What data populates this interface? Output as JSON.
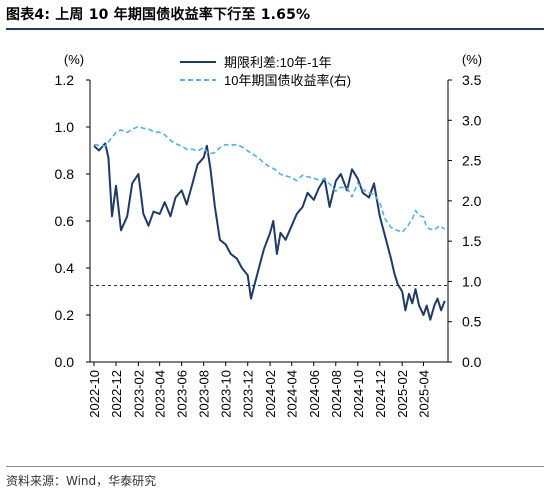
{
  "header": {
    "title": "图表4:  上周 10 年期国债收益率下行至 1.65%"
  },
  "footer": {
    "source": "资料来源：Wind，华泰研究"
  },
  "colors": {
    "spread": "#1f3a66",
    "yield10y": "#4fb3e3",
    "reference": "#1f3a66",
    "accent": "#1f3a66"
  },
  "chart_data": {
    "type": "line",
    "title": "",
    "xlabel": "",
    "y_left_label": "(%)",
    "y_right_label": "(%)",
    "ylim_left": [
      0.0,
      1.2
    ],
    "ylim_right": [
      0.0,
      3.5
    ],
    "yticks_left": [
      "0.0",
      "0.2",
      "0.4",
      "0.6",
      "0.8",
      "1.0",
      "1.2"
    ],
    "yticks_right": [
      "0.0",
      "0.5",
      "1.0",
      "1.5",
      "2.0",
      "2.5",
      "3.0",
      "3.5"
    ],
    "xticks": [
      "2022-10",
      "2022-12",
      "2023-02",
      "2023-04",
      "2023-06",
      "2023-08",
      "2023-10",
      "2023-12",
      "2024-02",
      "2024-04",
      "2024-06",
      "2024-08",
      "2024-10",
      "2024-12",
      "2025-02",
      "2025-04"
    ],
    "reference_line": {
      "axis": "right",
      "value": 0.95
    },
    "legend_position": "top-right",
    "grid": false,
    "series": [
      {
        "name": "期限利差:10年-1年",
        "axis": "left",
        "style": "solid",
        "points": [
          [
            "2022-10-01",
            0.92
          ],
          [
            "2022-10-15",
            0.9
          ],
          [
            "2022-11-01",
            0.93
          ],
          [
            "2022-11-10",
            0.87
          ],
          [
            "2022-11-20",
            0.62
          ],
          [
            "2022-12-01",
            0.75
          ],
          [
            "2022-12-15",
            0.56
          ],
          [
            "2023-01-01",
            0.62
          ],
          [
            "2023-01-15",
            0.76
          ],
          [
            "2023-02-01",
            0.8
          ],
          [
            "2023-02-15",
            0.63
          ],
          [
            "2023-03-01",
            0.58
          ],
          [
            "2023-03-15",
            0.64
          ],
          [
            "2023-04-01",
            0.63
          ],
          [
            "2023-04-15",
            0.68
          ],
          [
            "2023-05-01",
            0.62
          ],
          [
            "2023-05-15",
            0.7
          ],
          [
            "2023-06-01",
            0.73
          ],
          [
            "2023-06-15",
            0.67
          ],
          [
            "2023-07-01",
            0.76
          ],
          [
            "2023-07-15",
            0.84
          ],
          [
            "2023-08-01",
            0.87
          ],
          [
            "2023-08-10",
            0.92
          ],
          [
            "2023-08-20",
            0.82
          ],
          [
            "2023-09-01",
            0.66
          ],
          [
            "2023-09-15",
            0.52
          ],
          [
            "2023-10-01",
            0.5
          ],
          [
            "2023-10-15",
            0.46
          ],
          [
            "2023-11-01",
            0.44
          ],
          [
            "2023-11-15",
            0.4
          ],
          [
            "2023-12-01",
            0.37
          ],
          [
            "2023-12-10",
            0.27
          ],
          [
            "2023-12-20",
            0.33
          ],
          [
            "2024-01-01",
            0.4
          ],
          [
            "2024-01-15",
            0.48
          ],
          [
            "2024-02-01",
            0.55
          ],
          [
            "2024-02-10",
            0.6
          ],
          [
            "2024-02-20",
            0.46
          ],
          [
            "2024-03-01",
            0.55
          ],
          [
            "2024-03-15",
            0.52
          ],
          [
            "2024-04-01",
            0.58
          ],
          [
            "2024-04-15",
            0.63
          ],
          [
            "2024-05-01",
            0.66
          ],
          [
            "2024-05-15",
            0.72
          ],
          [
            "2024-06-01",
            0.69
          ],
          [
            "2024-06-15",
            0.74
          ],
          [
            "2024-07-01",
            0.78
          ],
          [
            "2024-07-15",
            0.66
          ],
          [
            "2024-08-01",
            0.77
          ],
          [
            "2024-08-15",
            0.8
          ],
          [
            "2024-09-01",
            0.73
          ],
          [
            "2024-09-15",
            0.82
          ],
          [
            "2024-10-01",
            0.78
          ],
          [
            "2024-10-15",
            0.72
          ],
          [
            "2024-11-01",
            0.7
          ],
          [
            "2024-11-15",
            0.76
          ],
          [
            "2024-12-01",
            0.62
          ],
          [
            "2024-12-15",
            0.54
          ],
          [
            "2025-01-01",
            0.44
          ],
          [
            "2025-01-10",
            0.38
          ],
          [
            "2025-01-20",
            0.33
          ],
          [
            "2025-02-01",
            0.3
          ],
          [
            "2025-02-10",
            0.22
          ],
          [
            "2025-02-20",
            0.29
          ],
          [
            "2025-03-01",
            0.25
          ],
          [
            "2025-03-10",
            0.31
          ],
          [
            "2025-03-20",
            0.24
          ],
          [
            "2025-04-01",
            0.2
          ],
          [
            "2025-04-10",
            0.24
          ],
          [
            "2025-04-20",
            0.18
          ],
          [
            "2025-05-01",
            0.24
          ],
          [
            "2025-05-10",
            0.27
          ],
          [
            "2025-05-20",
            0.22
          ],
          [
            "2025-05-30",
            0.26
          ]
        ]
      },
      {
        "name": "10年期国债收益率(右)",
        "axis": "right",
        "style": "dashed",
        "points": [
          [
            "2022-10-01",
            2.7
          ],
          [
            "2022-10-15",
            2.69
          ],
          [
            "2022-11-01",
            2.68
          ],
          [
            "2022-11-15",
            2.76
          ],
          [
            "2022-12-01",
            2.85
          ],
          [
            "2022-12-15",
            2.88
          ],
          [
            "2023-01-01",
            2.85
          ],
          [
            "2023-01-15",
            2.89
          ],
          [
            "2023-02-01",
            2.92
          ],
          [
            "2023-02-15",
            2.9
          ],
          [
            "2023-03-01",
            2.89
          ],
          [
            "2023-03-15",
            2.86
          ],
          [
            "2023-04-01",
            2.85
          ],
          [
            "2023-04-15",
            2.82
          ],
          [
            "2023-05-01",
            2.75
          ],
          [
            "2023-05-15",
            2.71
          ],
          [
            "2023-06-01",
            2.68
          ],
          [
            "2023-06-15",
            2.64
          ],
          [
            "2023-07-01",
            2.64
          ],
          [
            "2023-07-15",
            2.62
          ],
          [
            "2023-08-01",
            2.66
          ],
          [
            "2023-08-15",
            2.58
          ],
          [
            "2023-09-01",
            2.6
          ],
          [
            "2023-09-15",
            2.66
          ],
          [
            "2023-10-01",
            2.7
          ],
          [
            "2023-10-15",
            2.69
          ],
          [
            "2023-11-01",
            2.7
          ],
          [
            "2023-11-15",
            2.67
          ],
          [
            "2023-12-01",
            2.62
          ],
          [
            "2023-12-15",
            2.58
          ],
          [
            "2024-01-01",
            2.53
          ],
          [
            "2024-01-15",
            2.47
          ],
          [
            "2024-02-01",
            2.42
          ],
          [
            "2024-02-15",
            2.39
          ],
          [
            "2024-03-01",
            2.33
          ],
          [
            "2024-03-15",
            2.31
          ],
          [
            "2024-04-01",
            2.29
          ],
          [
            "2024-04-15",
            2.25
          ],
          [
            "2024-05-01",
            2.32
          ],
          [
            "2024-05-15",
            2.3
          ],
          [
            "2024-06-01",
            2.28
          ],
          [
            "2024-06-15",
            2.26
          ],
          [
            "2024-07-01",
            2.27
          ],
          [
            "2024-07-15",
            2.21
          ],
          [
            "2024-08-01",
            2.12
          ],
          [
            "2024-08-15",
            2.17
          ],
          [
            "2024-09-01",
            2.16
          ],
          [
            "2024-09-15",
            2.05
          ],
          [
            "2024-10-01",
            2.22
          ],
          [
            "2024-10-15",
            2.14
          ],
          [
            "2024-11-01",
            2.1
          ],
          [
            "2024-11-15",
            2.08
          ],
          [
            "2024-12-01",
            1.98
          ],
          [
            "2024-12-15",
            1.78
          ],
          [
            "2025-01-01",
            1.67
          ],
          [
            "2025-01-15",
            1.64
          ],
          [
            "2025-02-01",
            1.61
          ],
          [
            "2025-02-15",
            1.68
          ],
          [
            "2025-03-01",
            1.77
          ],
          [
            "2025-03-10",
            1.88
          ],
          [
            "2025-03-20",
            1.82
          ],
          [
            "2025-04-01",
            1.8
          ],
          [
            "2025-04-10",
            1.67
          ],
          [
            "2025-04-20",
            1.65
          ],
          [
            "2025-05-01",
            1.64
          ],
          [
            "2025-05-15",
            1.69
          ],
          [
            "2025-05-30",
            1.65
          ]
        ]
      }
    ]
  }
}
